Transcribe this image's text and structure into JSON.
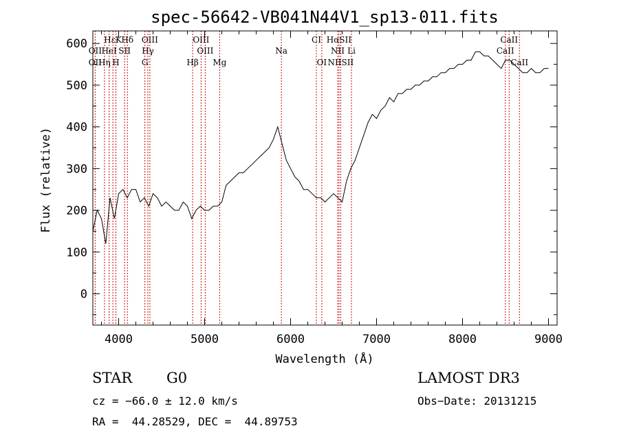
{
  "chart_data": {
    "type": "line",
    "title": "spec-56642-VB041N44V1_sp13-011.fits",
    "xlabel": "Wavelength (Å)",
    "ylabel": "Flux (relative)",
    "xlim": [
      3700,
      9100
    ],
    "ylim": [
      -75,
      630
    ],
    "xticks": [
      4000,
      5000,
      6000,
      7000,
      8000,
      9000
    ],
    "yticks": [
      0,
      100,
      200,
      300,
      400,
      500,
      600
    ],
    "x": [
      3700,
      3750,
      3800,
      3850,
      3900,
      3950,
      4000,
      4050,
      4100,
      4150,
      4200,
      4250,
      4300,
      4350,
      4400,
      4450,
      4500,
      4550,
      4600,
      4650,
      4700,
      4750,
      4800,
      4850,
      4900,
      4950,
      5000,
      5050,
      5100,
      5150,
      5200,
      5250,
      5300,
      5350,
      5400,
      5450,
      5500,
      5550,
      5600,
      5650,
      5700,
      5750,
      5800,
      5850,
      5900,
      5950,
      6000,
      6050,
      6100,
      6150,
      6200,
      6250,
      6300,
      6350,
      6400,
      6450,
      6500,
      6550,
      6600,
      6650,
      6700,
      6750,
      6800,
      6850,
      6900,
      6950,
      7000,
      7050,
      7100,
      7150,
      7200,
      7250,
      7300,
      7350,
      7400,
      7450,
      7500,
      7550,
      7600,
      7650,
      7700,
      7750,
      7800,
      7850,
      7900,
      7950,
      8000,
      8050,
      8100,
      8150,
      8200,
      8250,
      8300,
      8350,
      8400,
      8450,
      8500,
      8550,
      8600,
      8650,
      8700,
      8750,
      8800,
      8850,
      8900,
      8950,
      9000
    ],
    "y": [
      150,
      200,
      180,
      120,
      230,
      180,
      240,
      250,
      230,
      250,
      250,
      220,
      230,
      210,
      240,
      230,
      210,
      220,
      210,
      200,
      200,
      220,
      210,
      180,
      200,
      210,
      200,
      200,
      210,
      210,
      220,
      260,
      270,
      280,
      290,
      290,
      300,
      310,
      320,
      330,
      340,
      350,
      370,
      400,
      360,
      320,
      300,
      280,
      270,
      250,
      250,
      240,
      230,
      230,
      220,
      230,
      240,
      230,
      220,
      270,
      300,
      320,
      350,
      380,
      410,
      430,
      420,
      440,
      450,
      470,
      460,
      480,
      480,
      490,
      490,
      500,
      500,
      510,
      510,
      520,
      520,
      530,
      530,
      540,
      540,
      550,
      550,
      560,
      560,
      580,
      580,
      570,
      570,
      560,
      550,
      540,
      560,
      560,
      550,
      540,
      530,
      530,
      540,
      530,
      530,
      540,
      540
    ],
    "lines": [
      {
        "label": "HεK",
        "x": 3933,
        "row": 1
      },
      {
        "label": "Hδ",
        "x": 4102,
        "row": 1
      },
      {
        "label": "OIII",
        "x": 4363,
        "row": 1
      },
      {
        "label": "OIII",
        "x": 4959,
        "row": 1
      },
      {
        "label": "CI",
        "x": 6300,
        "row": 1
      },
      {
        "label": "HαSII",
        "x": 6563,
        "row": 1
      },
      {
        "label": "CaII",
        "x": 8542,
        "row": 1
      },
      {
        "label": "OII",
        "x": 3727,
        "row": 2
      },
      {
        "label": "HeI",
        "x": 3889,
        "row": 2
      },
      {
        "label": "SII",
        "x": 4069,
        "row": 2
      },
      {
        "label": "Hγ",
        "x": 4340,
        "row": 2
      },
      {
        "label": "OIII",
        "x": 5007,
        "row": 2
      },
      {
        "label": "Na",
        "x": 5893,
        "row": 2
      },
      {
        "label": "NII",
        "x": 6548,
        "row": 2
      },
      {
        "label": "Li",
        "x": 6708,
        "row": 2
      },
      {
        "label": "CaII",
        "x": 8498,
        "row": 2
      },
      {
        "label": "OII",
        "x": 3727,
        "row": 3
      },
      {
        "label": "Hη",
        "x": 3835,
        "row": 3
      },
      {
        "label": "H",
        "x": 3968,
        "row": 3
      },
      {
        "label": "G",
        "x": 4305,
        "row": 3
      },
      {
        "label": "Hβ",
        "x": 4861,
        "row": 3
      },
      {
        "label": "Mg",
        "x": 5175,
        "row": 3
      },
      {
        "label": "OI",
        "x": 6363,
        "row": 3
      },
      {
        "label": "NIISII",
        "x": 6583,
        "row": 3
      },
      {
        "label": "CaII",
        "x": 8662,
        "row": 3
      }
    ],
    "line_color": "#cc0000"
  },
  "info": {
    "class": "STAR",
    "subclass": "G0",
    "survey": "LAMOST DR3",
    "cz": "cz = −66.0 ± 12.0 km/s",
    "obsdate": "Obs−Date: 20131215",
    "radec": "RA =  44.28529, DEC =  44.89753"
  }
}
